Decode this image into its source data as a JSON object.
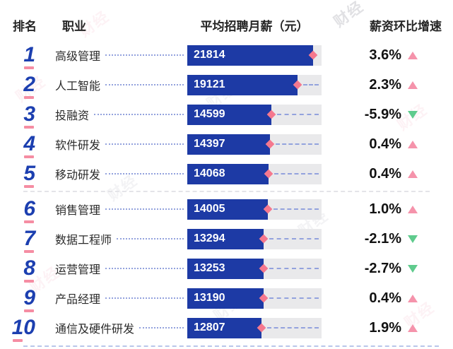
{
  "header": {
    "rank": "排名",
    "occupation": "职业",
    "salary": "平均招聘月薪（元）",
    "growth": "薪资环比增速"
  },
  "rows": [
    {
      "rank": "1",
      "occupation": "高级管理",
      "salary": "21814",
      "growth": "3.6%",
      "direction": "up"
    },
    {
      "rank": "2",
      "occupation": "人工智能",
      "salary": "19121",
      "growth": "2.3%",
      "direction": "up"
    },
    {
      "rank": "3",
      "occupation": "投融资",
      "salary": "14599",
      "growth": "-5.9%",
      "direction": "down"
    },
    {
      "rank": "4",
      "occupation": "软件研发",
      "salary": "14397",
      "growth": "0.4%",
      "direction": "up"
    },
    {
      "rank": "5",
      "occupation": "移动研发",
      "salary": "14068",
      "growth": "0.4%",
      "direction": "up"
    },
    {
      "rank": "6",
      "occupation": "销售管理",
      "salary": "14005",
      "growth": "1.0%",
      "direction": "up"
    },
    {
      "rank": "7",
      "occupation": "数据工程师",
      "salary": "13294",
      "growth": "-2.1%",
      "direction": "down"
    },
    {
      "rank": "8",
      "occupation": "运营管理",
      "salary": "13253",
      "growth": "-2.7%",
      "direction": "down"
    },
    {
      "rank": "9",
      "occupation": "产品经理",
      "salary": "13190",
      "growth": "0.4%",
      "direction": "up"
    },
    {
      "rank": "10",
      "occupation": "通信及硬件研发",
      "salary": "12807",
      "growth": "1.9%",
      "direction": "up"
    }
  ],
  "chart_data": {
    "type": "bar",
    "orientation": "horizontal",
    "title": "",
    "categories": [
      "高级管理",
      "人工智能",
      "投融资",
      "软件研发",
      "移动研发",
      "销售管理",
      "数据工程师",
      "运营管理",
      "产品经理",
      "通信及硬件研发"
    ],
    "series": [
      {
        "name": "平均招聘月薪（元）",
        "values": [
          21814,
          19121,
          14599,
          14397,
          14068,
          14005,
          13294,
          13253,
          13190,
          12807
        ]
      },
      {
        "name": "薪资环比增速(%)",
        "values": [
          3.6,
          2.3,
          -5.9,
          0.4,
          0.4,
          1.0,
          -2.1,
          -2.7,
          0.4,
          1.9
        ]
      }
    ],
    "xlim": [
      0,
      23280
    ],
    "grid": false,
    "legend_position": "none",
    "value_labels": "inside-bar-left",
    "marker": "diamond-at-bar-end"
  },
  "colors": {
    "bar_blue": "#1d3aa5",
    "track_gray": "#e9e9eb",
    "rank_blue": "#1c3fb0",
    "rank_underline_pink": "#f58da3",
    "diamond_pink": "#f5788e",
    "up_triangle_pink": "#f593ab",
    "down_triangle_green": "#5fcb8d",
    "leader_dot_blue": "#93a2dd",
    "divider_gray": "#e4e4e8",
    "divider_blue": "#b9c6ea",
    "text_dark": "#252525",
    "bar_text_white": "#ffffff"
  },
  "watermark": {
    "text": "财经"
  }
}
